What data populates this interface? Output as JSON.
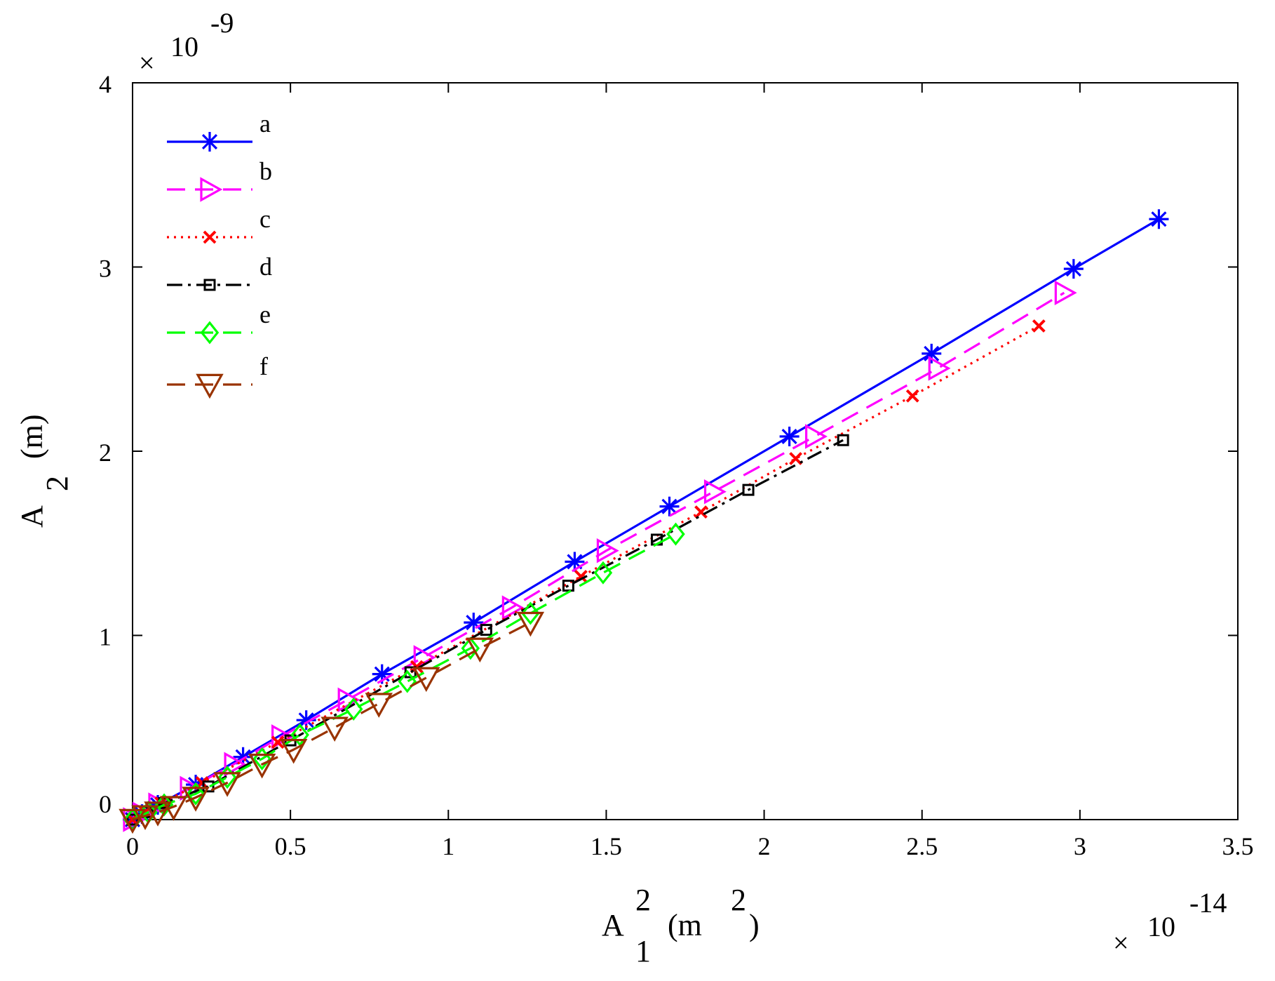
{
  "chart_data": {
    "type": "line",
    "xlabel": {
      "base": "A",
      "sub": "1",
      "sup": "2",
      "unit_pre": "(m",
      "unit_sup": "2",
      "unit_post": ")"
    },
    "ylabel": {
      "base": "A",
      "sub": "2",
      "unit": "(m)"
    },
    "x_multiplier": {
      "symbol": "×",
      "base": "10",
      "exponent": "-14"
    },
    "y_multiplier": {
      "symbol": "×",
      "base": "10",
      "exponent": "-9"
    },
    "xlim": [
      0,
      3.5
    ],
    "ylim": [
      0,
      4
    ],
    "x_ticks": [
      0,
      0.5,
      1,
      1.5,
      2,
      2.5,
      3,
      3.5
    ],
    "x_tick_labels": [
      "0",
      "0.5",
      "1",
      "1.5",
      "2",
      "2.5",
      "3",
      "3.5"
    ],
    "y_ticks": [
      0,
      1,
      2,
      3,
      4
    ],
    "y_tick_labels": [
      "0",
      "1",
      "2",
      "3",
      "4"
    ],
    "grid": false,
    "legend_position": "top-left",
    "series": [
      {
        "name": "a",
        "color": "#0000ff",
        "dash": "solid",
        "marker": "asterisk",
        "x": [
          0.0,
          0.03,
          0.08,
          0.2,
          0.35,
          0.55,
          0.79,
          1.08,
          1.4,
          1.7,
          2.08,
          2.53,
          2.98,
          3.25
        ],
        "y": [
          0.0,
          0.03,
          0.08,
          0.19,
          0.34,
          0.54,
          0.79,
          1.07,
          1.4,
          1.7,
          2.08,
          2.53,
          2.99,
          3.26
        ]
      },
      {
        "name": "b",
        "color": "#ff00ff",
        "dash": "dashed",
        "marker": "triangle-right",
        "x": [
          0.0,
          0.03,
          0.08,
          0.18,
          0.32,
          0.47,
          0.68,
          0.92,
          1.2,
          1.5,
          1.84,
          2.16,
          2.55,
          2.95
        ],
        "y": [
          0.0,
          0.03,
          0.08,
          0.17,
          0.3,
          0.45,
          0.65,
          0.88,
          1.15,
          1.46,
          1.78,
          2.08,
          2.45,
          2.86
        ]
      },
      {
        "name": "c",
        "color": "#ff0000",
        "dash": "dotted",
        "marker": "x",
        "x": [
          0.0,
          0.04,
          0.09,
          0.22,
          0.46,
          0.9,
          1.42,
          1.8,
          2.1,
          2.47,
          2.87
        ],
        "y": [
          0.0,
          0.04,
          0.09,
          0.2,
          0.42,
          0.83,
          1.32,
          1.67,
          1.96,
          2.3,
          2.68
        ]
      },
      {
        "name": "d",
        "color": "#000000",
        "dash": "dashdot",
        "marker": "square",
        "x": [
          0.0,
          0.05,
          0.1,
          0.24,
          0.5,
          0.88,
          1.12,
          1.38,
          1.66,
          1.95,
          2.25
        ],
        "y": [
          0.0,
          0.04,
          0.09,
          0.18,
          0.43,
          0.8,
          1.03,
          1.27,
          1.52,
          1.79,
          2.06
        ]
      },
      {
        "name": "e",
        "color": "#00ff00",
        "dash": "dashed",
        "marker": "diamond",
        "x": [
          0.0,
          0.05,
          0.1,
          0.2,
          0.3,
          0.41,
          0.53,
          0.7,
          0.87,
          1.07,
          1.26,
          1.49,
          1.72
        ],
        "y": [
          0.0,
          0.04,
          0.08,
          0.14,
          0.23,
          0.33,
          0.46,
          0.6,
          0.75,
          0.93,
          1.12,
          1.34,
          1.55
        ]
      },
      {
        "name": "f",
        "color": "#993300",
        "dash": "dashed",
        "marker": "triangle-down",
        "x": [
          0.0,
          0.04,
          0.08,
          0.13,
          0.2,
          0.3,
          0.41,
          0.51,
          0.64,
          0.78,
          0.93,
          1.1,
          1.26
        ],
        "y": [
          0.0,
          0.02,
          0.04,
          0.07,
          0.12,
          0.2,
          0.3,
          0.38,
          0.5,
          0.63,
          0.77,
          0.93,
          1.07
        ]
      }
    ]
  }
}
